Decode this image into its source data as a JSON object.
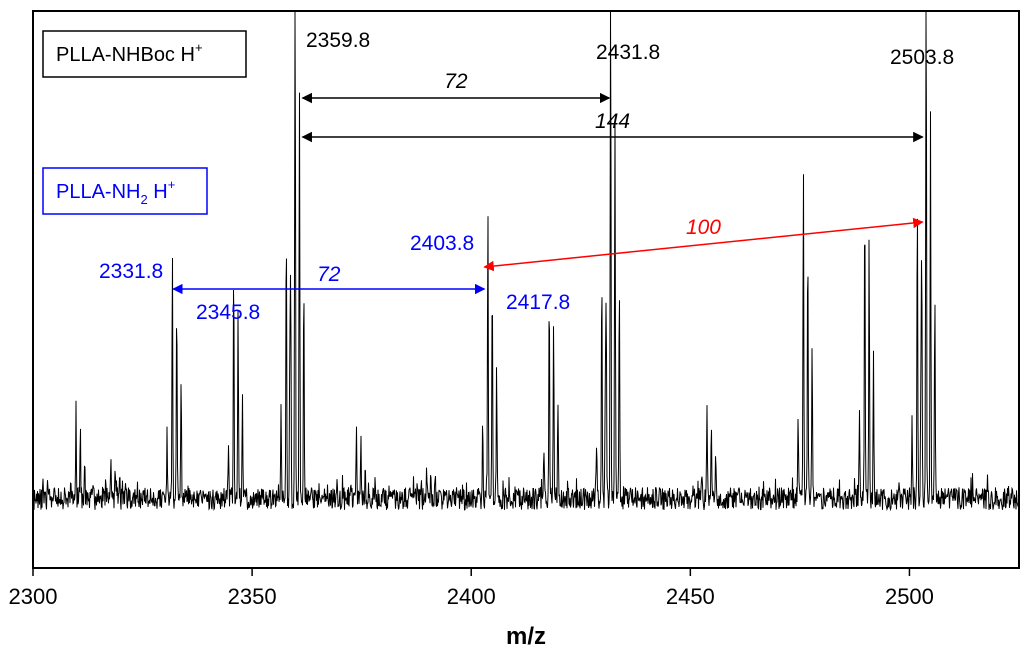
{
  "chart_data": {
    "type": "line",
    "xlabel": "m/z",
    "ylabel": "",
    "xlim": [
      2300,
      2525
    ],
    "ylim": [
      0,
      1
    ],
    "x_ticks": [
      2300,
      2350,
      2400,
      2450,
      2500
    ],
    "grid": false,
    "colors": {
      "nhboc": "#000000",
      "nh2": "#0000ff",
      "diff100": "#ff0000",
      "spectrum": "#000000"
    },
    "legend": [
      {
        "name": "PLLA-NHBoc H",
        "sup": "+",
        "color": "#000000"
      },
      {
        "name": "PLLA-NH",
        "sub": "2",
        "tail": " H",
        "sup": "+",
        "color": "#0000ff"
      }
    ],
    "peaks": [
      {
        "mz": 2309.8,
        "intensity": 0.16
      },
      {
        "mz": 2317.8,
        "intensity": 0.08
      },
      {
        "mz": 2331.8,
        "intensity": 0.5
      },
      {
        "mz": 2345.8,
        "intensity": 0.45
      },
      {
        "mz": 2357.8,
        "intensity": 0.57
      },
      {
        "mz": 2359.8,
        "intensity": 1.0
      },
      {
        "mz": 2373.8,
        "intensity": 0.15
      },
      {
        "mz": 2389.8,
        "intensity": 0.07
      },
      {
        "mz": 2403.8,
        "intensity": 0.58
      },
      {
        "mz": 2417.8,
        "intensity": 0.44
      },
      {
        "mz": 2429.8,
        "intensity": 0.46
      },
      {
        "mz": 2431.8,
        "intensity": 0.97
      },
      {
        "mz": 2453.8,
        "intensity": 0.17
      },
      {
        "mz": 2475.8,
        "intensity": 0.65
      },
      {
        "mz": 2489.8,
        "intensity": 0.62
      },
      {
        "mz": 2501.8,
        "intensity": 0.59
      },
      {
        "mz": 2503.8,
        "intensity": 0.94
      }
    ],
    "peak_labels": [
      {
        "text": "2359.8",
        "series": "nhboc"
      },
      {
        "text": "2431.8",
        "series": "nhboc"
      },
      {
        "text": "2503.8",
        "series": "nhboc"
      },
      {
        "text": "2331.8",
        "series": "nh2"
      },
      {
        "text": "2345.8",
        "series": "nh2"
      },
      {
        "text": "2403.8",
        "series": "nh2"
      },
      {
        "text": "2417.8",
        "series": "nh2"
      }
    ],
    "differences": [
      {
        "from": 2361.5,
        "to": 2431.5,
        "label": "72",
        "series": "nhboc"
      },
      {
        "from": 2361.5,
        "to": 2503.0,
        "label": "144",
        "series": "nhboc"
      },
      {
        "from": 2332.0,
        "to": 2403.0,
        "label": "72",
        "series": "nh2"
      },
      {
        "from": 2403.0,
        "to": 2503.0,
        "label": "100",
        "series": "diff100"
      }
    ]
  }
}
